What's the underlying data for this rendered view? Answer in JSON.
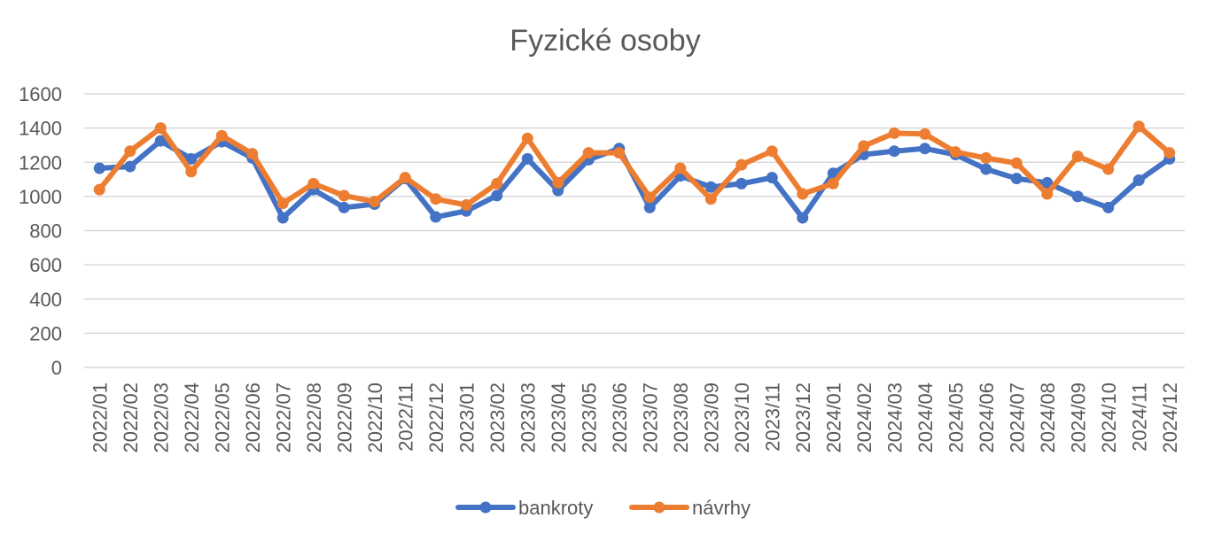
{
  "chart_data": {
    "type": "line",
    "title": "Fyzické osoby",
    "xlabel": "",
    "ylabel": "",
    "ylim": [
      0,
      1600
    ],
    "yticks": [
      0,
      200,
      400,
      600,
      800,
      1000,
      1200,
      1400,
      1600
    ],
    "grid": true,
    "legend_position": "bottom",
    "categories": [
      "2022/01",
      "2022/02",
      "2022/03",
      "2022/04",
      "2022/05",
      "2022/06",
      "2022/07",
      "2022/08",
      "2022/09",
      "2022/10",
      "2022/11",
      "2022/12",
      "2023/01",
      "2023/02",
      "2023/03",
      "2023/04",
      "2023/05",
      "2023/06",
      "2023/07",
      "2023/08",
      "2023/09",
      "2023/10",
      "2023/11",
      "2023/12",
      "2024/01",
      "2024/02",
      "2024/03",
      "2024/04",
      "2024/05",
      "2024/06",
      "2024/07",
      "2024/08",
      "2024/09",
      "2024/10",
      "2024/11",
      "2024/12"
    ],
    "series": [
      {
        "name": "bankroty",
        "color": "#4472c4",
        "values": [
          1165,
          1175,
          1325,
          1220,
          1320,
          1225,
          875,
          1040,
          935,
          955,
          1105,
          880,
          915,
          1005,
          1220,
          1035,
          1215,
          1280,
          935,
          1120,
          1055,
          1075,
          1110,
          875,
          1135,
          1245,
          1265,
          1280,
          1245,
          1160,
          1105,
          1080,
          1000,
          935,
          1095,
          1220
        ]
      },
      {
        "name": "návrhy",
        "color": "#ed7d31",
        "values": [
          1040,
          1265,
          1400,
          1145,
          1355,
          1250,
          960,
          1075,
          1005,
          970,
          1110,
          985,
          950,
          1075,
          1340,
          1080,
          1255,
          1255,
          995,
          1165,
          985,
          1185,
          1265,
          1015,
          1075,
          1295,
          1370,
          1365,
          1260,
          1225,
          1195,
          1015,
          1235,
          1160,
          1410,
          1255
        ]
      }
    ]
  }
}
